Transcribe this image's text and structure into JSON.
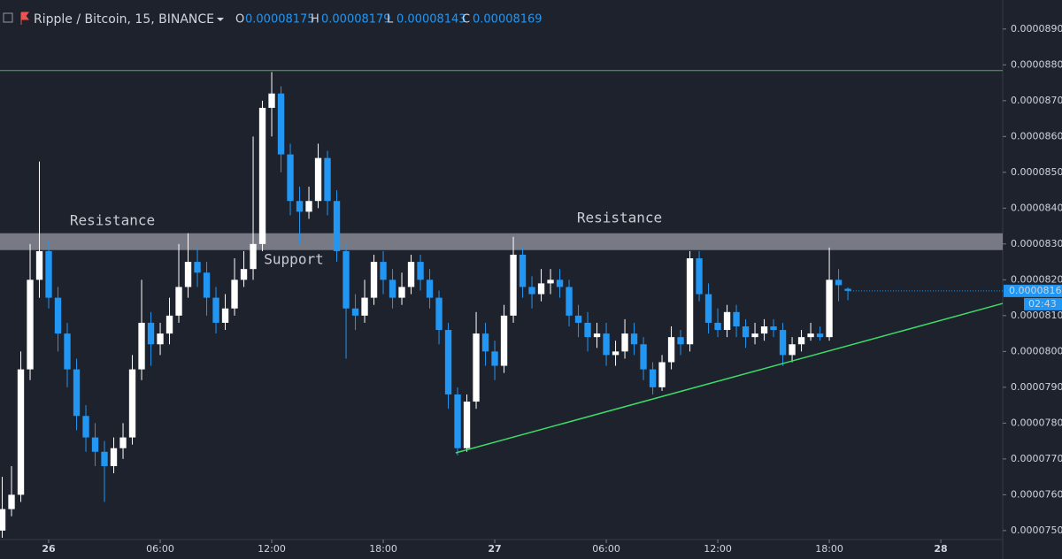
{
  "chart_data": {
    "type": "candlestick",
    "title": "Ripple / Bitcoin, 15, BINANCE",
    "header_labels": [
      "O",
      "H",
      "L",
      "C"
    ],
    "x": [
      -2.5,
      -2,
      -1.5,
      -1,
      -0.5,
      0,
      0.5,
      1,
      1.5,
      2,
      2.5,
      3,
      3.5,
      4,
      4.5,
      5,
      5.5,
      6,
      6.5,
      7,
      7.5,
      8,
      8.5,
      9,
      9.5,
      10,
      10.5,
      11,
      11.5,
      12,
      12.5,
      13,
      13.5,
      14,
      14.5,
      15,
      15.5,
      16,
      16.5,
      17,
      17.5,
      18,
      18.5,
      19,
      19.5,
      20,
      20.5,
      21,
      21.5,
      22,
      22.5,
      23,
      23.5,
      24,
      24.5,
      25,
      25.5,
      26,
      26.5,
      27,
      27.5,
      28,
      28.5,
      29,
      29.5,
      30,
      30.5,
      31,
      31.5,
      32,
      32.5,
      33,
      33.5,
      34,
      34.5,
      35,
      35.5,
      36,
      36.5,
      37,
      37.5,
      38,
      38.5,
      39,
      39.5,
      40,
      40.5,
      41,
      41.5,
      42,
      42.5,
      43
    ],
    "open": [
      7.5e-05,
      7.56e-05,
      7.6e-05,
      7.95e-05,
      8.2e-05,
      8.28e-05,
      8.15e-05,
      8.05e-05,
      7.95e-05,
      7.82e-05,
      7.76e-05,
      7.72e-05,
      7.68e-05,
      7.73e-05,
      7.76e-05,
      7.95e-05,
      8.08e-05,
      8.02e-05,
      8.05e-05,
      8.1e-05,
      8.18e-05,
      8.25e-05,
      8.22e-05,
      8.15e-05,
      8.08e-05,
      8.12e-05,
      8.2e-05,
      8.23e-05,
      8.3e-05,
      8.68e-05,
      8.72e-05,
      8.55e-05,
      8.42e-05,
      8.39e-05,
      8.42e-05,
      8.54e-05,
      8.42e-05,
      8.28e-05,
      8.12e-05,
      8.1e-05,
      8.15e-05,
      8.25e-05,
      8.2e-05,
      8.15e-05,
      8.18e-05,
      8.25e-05,
      8.2e-05,
      8.15e-05,
      8.06e-05,
      7.88e-05,
      7.73e-05,
      7.86e-05,
      8.05e-05,
      8e-05,
      7.96e-05,
      8.1e-05,
      8.27e-05,
      8.18e-05,
      8.16e-05,
      8.19e-05,
      8.2e-05,
      8.18e-05,
      8.1e-05,
      8.08e-05,
      8.04e-05,
      8.05e-05,
      7.99e-05,
      8e-05,
      8.05e-05,
      8.02e-05,
      7.95e-05,
      7.9e-05,
      7.97e-05,
      8.04e-05,
      8.02e-05,
      8.26e-05,
      8.16e-05,
      8.08e-05,
      8.06e-05,
      8.11e-05,
      8.07e-05,
      8.04e-05,
      8.05e-05,
      8.07e-05,
      8.06e-05,
      7.99e-05,
      8.02e-05,
      8.04e-05,
      8.05e-05,
      8.04e-05,
      8.2e-05,
      8.175e-05
    ],
    "high": [
      7.65e-05,
      7.68e-05,
      8e-05,
      8.3e-05,
      8.53e-05,
      8.31e-05,
      8.18e-05,
      8.08e-05,
      7.98e-05,
      7.85e-05,
      7.8e-05,
      7.75e-05,
      7.76e-05,
      7.8e-05,
      7.99e-05,
      8.2e-05,
      8.11e-05,
      8.08e-05,
      8.15e-05,
      8.3e-05,
      8.33e-05,
      8.29e-05,
      8.25e-05,
      8.18e-05,
      8.16e-05,
      8.26e-05,
      8.28e-05,
      8.6e-05,
      8.7e-05,
      8.78e-05,
      8.74e-05,
      8.58e-05,
      8.46e-05,
      8.46e-05,
      8.58e-05,
      8.56e-05,
      8.45e-05,
      8.3e-05,
      8.16e-05,
      8.2e-05,
      8.27e-05,
      8.28e-05,
      8.23e-05,
      8.22e-05,
      8.27e-05,
      8.27e-05,
      8.23e-05,
      8.17e-05,
      8.08e-05,
      7.9e-05,
      7.88e-05,
      8.11e-05,
      8.08e-05,
      8.03e-05,
      8.13e-05,
      8.32e-05,
      8.29e-05,
      8.21e-05,
      8.23e-05,
      8.23e-05,
      8.23e-05,
      8.2e-05,
      8.13e-05,
      8.11e-05,
      8.08e-05,
      8.08e-05,
      8.03e-05,
      8.09e-05,
      8.08e-05,
      8.04e-05,
      7.97e-05,
      7.99e-05,
      8.07e-05,
      8.06e-05,
      8.28e-05,
      8.28e-05,
      8.19e-05,
      8.12e-05,
      8.13e-05,
      8.13e-05,
      8.09e-05,
      8.08e-05,
      8.09e-05,
      8.09e-05,
      8.08e-05,
      8.04e-05,
      8.06e-05,
      8.08e-05,
      8.07e-05,
      8.29e-05,
      8.23e-05,
      8.179e-05
    ],
    "low": [
      7.48e-05,
      7.54e-05,
      7.58e-05,
      7.92e-05,
      8.15e-05,
      8.12e-05,
      8e-05,
      7.9e-05,
      7.78e-05,
      7.72e-05,
      7.68e-05,
      7.58e-05,
      7.66e-05,
      7.7e-05,
      7.74e-05,
      7.92e-05,
      7.96e-05,
      7.99e-05,
      8.02e-05,
      8.08e-05,
      8.15e-05,
      8.18e-05,
      8.1e-05,
      8.05e-05,
      8.06e-05,
      8.1e-05,
      8.18e-05,
      8.2e-05,
      8.28e-05,
      8.6e-05,
      8.5e-05,
      8.38e-05,
      8.3e-05,
      8.37e-05,
      8.4e-05,
      8.38e-05,
      8.25e-05,
      7.98e-05,
      8.06e-05,
      8.08e-05,
      8.13e-05,
      8.16e-05,
      8.12e-05,
      8.13e-05,
      8.16e-05,
      8.17e-05,
      8.12e-05,
      8.02e-05,
      7.84e-05,
      7.71e-05,
      7.72e-05,
      7.84e-05,
      7.96e-05,
      7.92e-05,
      7.94e-05,
      8.08e-05,
      8.15e-05,
      8.12e-05,
      8.14e-05,
      8.16e-05,
      8.15e-05,
      8.07e-05,
      8.04e-05,
      8e-05,
      8.01e-05,
      7.96e-05,
      7.96e-05,
      7.98e-05,
      7.99e-05,
      7.92e-05,
      7.88e-05,
      7.89e-05,
      7.95e-05,
      7.99e-05,
      8e-05,
      8.14e-05,
      8.05e-05,
      8.04e-05,
      8.04e-05,
      8.04e-05,
      8.01e-05,
      8.02e-05,
      8.03e-05,
      8.04e-05,
      7.96e-05,
      7.97e-05,
      8e-05,
      8.03e-05,
      8.03e-05,
      8.03e-05,
      8.14e-05,
      8.143e-05
    ],
    "close": [
      7.56e-05,
      7.6e-05,
      7.95e-05,
      8.2e-05,
      8.28e-05,
      8.15e-05,
      8.05e-05,
      7.95e-05,
      7.82e-05,
      7.76e-05,
      7.72e-05,
      7.68e-05,
      7.73e-05,
      7.76e-05,
      7.95e-05,
      8.08e-05,
      8.02e-05,
      8.05e-05,
      8.1e-05,
      8.18e-05,
      8.25e-05,
      8.22e-05,
      8.15e-05,
      8.08e-05,
      8.12e-05,
      8.2e-05,
      8.23e-05,
      8.3e-05,
      8.68e-05,
      8.72e-05,
      8.55e-05,
      8.42e-05,
      8.39e-05,
      8.42e-05,
      8.54e-05,
      8.42e-05,
      8.28e-05,
      8.12e-05,
      8.1e-05,
      8.15e-05,
      8.25e-05,
      8.2e-05,
      8.15e-05,
      8.18e-05,
      8.25e-05,
      8.2e-05,
      8.15e-05,
      8.06e-05,
      7.88e-05,
      7.73e-05,
      7.86e-05,
      8.05e-05,
      8e-05,
      7.96e-05,
      8.1e-05,
      8.27e-05,
      8.18e-05,
      8.16e-05,
      8.19e-05,
      8.2e-05,
      8.18e-05,
      8.1e-05,
      8.08e-05,
      8.04e-05,
      8.05e-05,
      7.99e-05,
      8e-05,
      8.05e-05,
      8.02e-05,
      7.95e-05,
      7.9e-05,
      7.97e-05,
      8.04e-05,
      8.02e-05,
      8.26e-05,
      8.16e-05,
      8.08e-05,
      8.06e-05,
      8.11e-05,
      8.07e-05,
      8.04e-05,
      8.05e-05,
      8.07e-05,
      8.06e-05,
      7.99e-05,
      8.02e-05,
      8.04e-05,
      8.05e-05,
      8.04e-05,
      8.2e-05,
      8.185e-05,
      8.169e-05
    ],
    "up_color": "#ffffff",
    "down_color": "#2196f3",
    "xlim": [
      -2.62,
      51.33
    ],
    "ylim": [
      7.475e-05,
      8.981e-05
    ],
    "xticks": [
      {
        "value": 0,
        "label": "26"
      },
      {
        "value": 6,
        "label": "06:00"
      },
      {
        "value": 12,
        "label": "12:00"
      },
      {
        "value": 18,
        "label": "18:00"
      },
      {
        "value": 24,
        "label": "27"
      },
      {
        "value": 30,
        "label": "06:00"
      },
      {
        "value": 36,
        "label": "12:00"
      },
      {
        "value": 42,
        "label": "18:00"
      },
      {
        "value": 48,
        "label": "28"
      }
    ],
    "yticks": [
      {
        "value": 7.5e-05,
        "label": "0.00007500"
      },
      {
        "value": 7.6e-05,
        "label": "0.00007600"
      },
      {
        "value": 7.7e-05,
        "label": "0.00007700"
      },
      {
        "value": 7.8e-05,
        "label": "0.00007800"
      },
      {
        "value": 7.9e-05,
        "label": "0.00007900"
      },
      {
        "value": 8e-05,
        "label": "0.00008000"
      },
      {
        "value": 8.1e-05,
        "label": "0.00008100"
      },
      {
        "value": 8.2e-05,
        "label": "0.00008200"
      },
      {
        "value": 8.3e-05,
        "label": "0.00008300"
      },
      {
        "value": 8.4e-05,
        "label": "0.00008400"
      },
      {
        "value": 8.5e-05,
        "label": "0.00008500"
      },
      {
        "value": 8.6e-05,
        "label": "0.00008600"
      },
      {
        "value": 8.7e-05,
        "label": "0.00008700"
      },
      {
        "value": 8.8e-05,
        "label": "0.00008800"
      },
      {
        "value": 8.9e-05,
        "label": "0.00008900"
      }
    ],
    "grid": false,
    "level_line": {
      "value": 8.784e-05,
      "color": "#4caf50"
    },
    "zone": {
      "range": [
        8.283e-05,
        8.33e-05
      ],
      "color": "#9598a1"
    },
    "trendline": {
      "x": [
        21.9,
        51.33
      ],
      "y": [
        7.717e-05,
        8.134e-05
      ],
      "color": "#3ddc6a"
    },
    "annotations": [
      "Resistance",
      "Support",
      "Resistance"
    ],
    "countdown": "02:43"
  }
}
